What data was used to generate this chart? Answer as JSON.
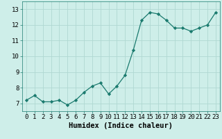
{
  "x": [
    0,
    1,
    2,
    3,
    4,
    5,
    6,
    7,
    8,
    9,
    10,
    11,
    12,
    13,
    14,
    15,
    16,
    17,
    18,
    19,
    20,
    21,
    22,
    23
  ],
  "y": [
    7.2,
    7.5,
    7.1,
    7.1,
    7.2,
    6.9,
    7.2,
    7.7,
    8.1,
    8.3,
    7.6,
    8.1,
    8.8,
    10.4,
    12.3,
    12.8,
    12.7,
    12.3,
    11.8,
    11.8,
    11.6,
    11.8,
    12.0,
    12.8
  ],
  "line_color": "#1a7a6e",
  "marker": "D",
  "marker_size": 2.2,
  "bg_color": "#ceeee9",
  "grid_color": "#b0d8d2",
  "xlabel": "Humidex (Indice chaleur)",
  "xlabel_fontsize": 7.5,
  "tick_fontsize": 6.5,
  "ylim": [
    6.5,
    13.5
  ],
  "xlim": [
    -0.5,
    23.5
  ],
  "yticks": [
    7,
    8,
    9,
    10,
    11,
    12,
    13
  ],
  "xticks": [
    0,
    1,
    2,
    3,
    4,
    5,
    6,
    7,
    8,
    9,
    10,
    11,
    12,
    13,
    14,
    15,
    16,
    17,
    18,
    19,
    20,
    21,
    22,
    23
  ]
}
